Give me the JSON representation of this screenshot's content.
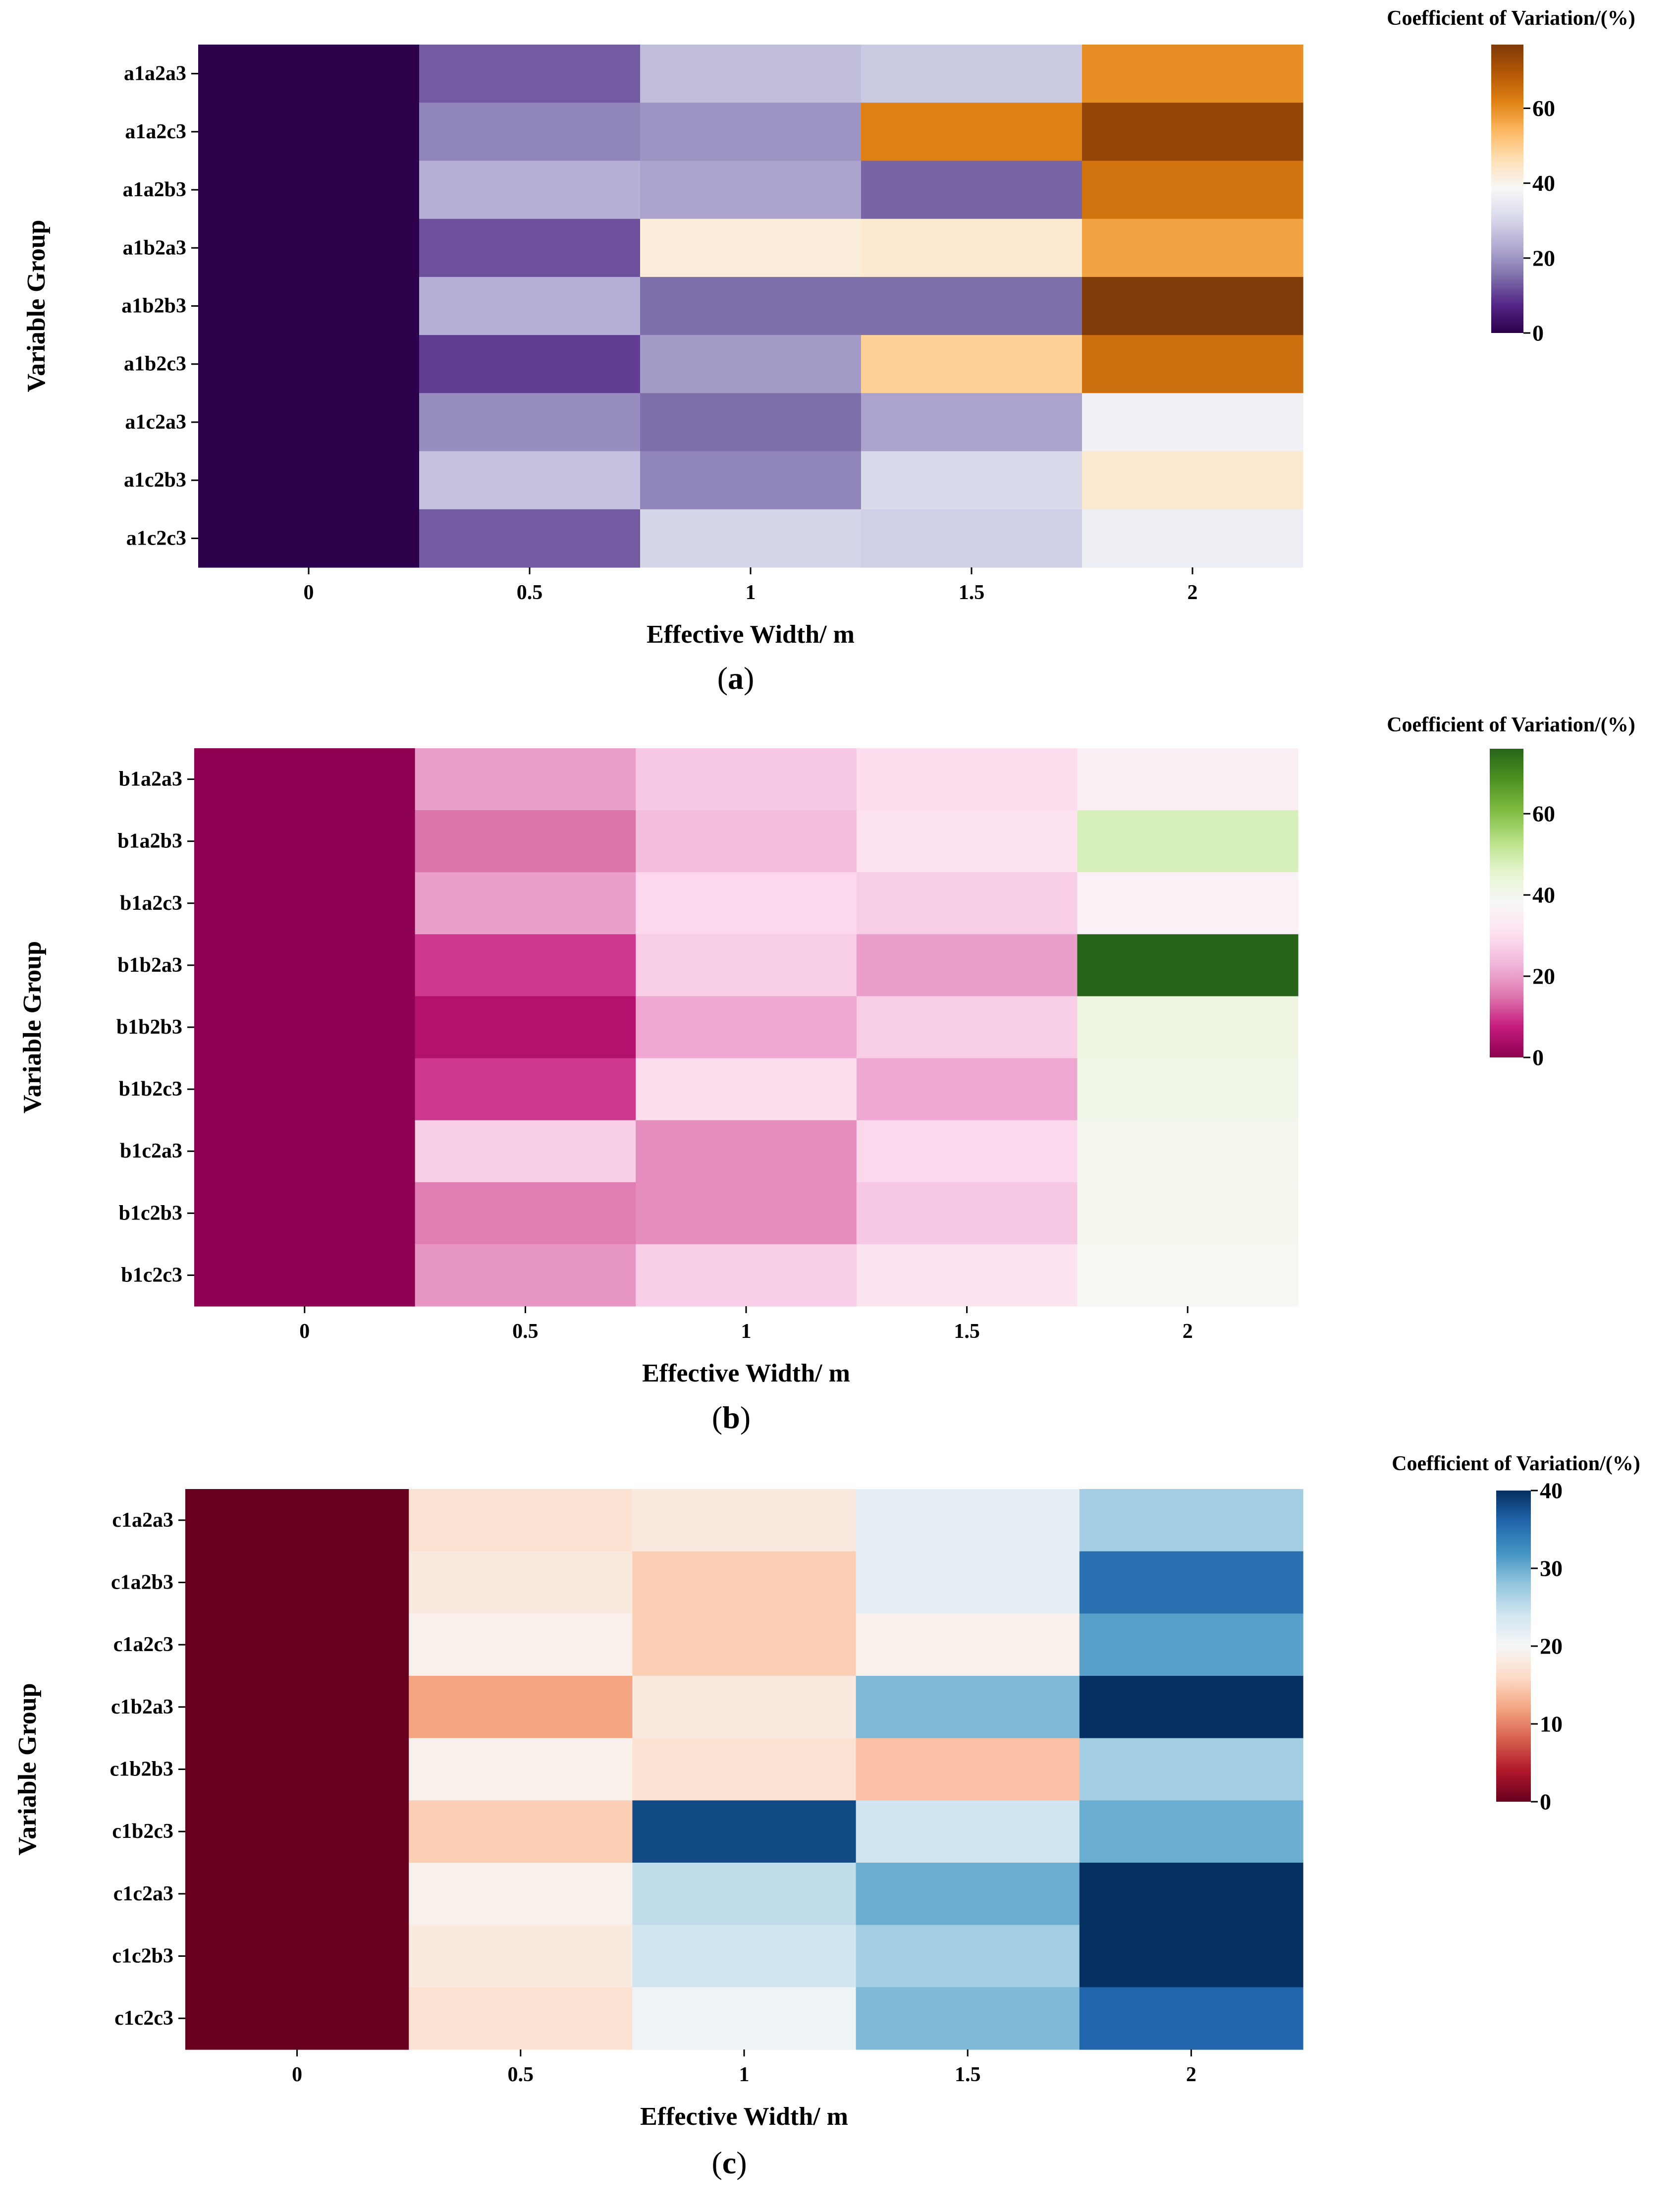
{
  "chart_data": [
    {
      "type": "heatmap",
      "panel": "a",
      "caption": {
        "open": "(",
        "letter": "a",
        "close": ")"
      },
      "xlabel": "Effective Width/ m",
      "ylabel": "Variable Group",
      "colorbar_label": "Coefficient of Variation/(%)",
      "colormap": "PuOr_r",
      "vmin": 0,
      "vmax": 77,
      "colorbar_ticks": [
        0,
        20,
        40,
        60
      ],
      "x": [
        "0",
        "0.5",
        "1",
        "1.5",
        "2"
      ],
      "y": [
        "a1a2a3",
        "a1a2c3",
        "a1a2b3",
        "a1b2a3",
        "a1b2b3",
        "a1b2c3",
        "a1c2a3",
        "a1c2b3",
        "a1c2c3"
      ],
      "values": [
        [
          0,
          13,
          26,
          28,
          60
        ],
        [
          0,
          18,
          20,
          62,
          74
        ],
        [
          0,
          24,
          22,
          14,
          64
        ],
        [
          0,
          12,
          42,
          43,
          57
        ],
        [
          0,
          24,
          15,
          15,
          78
        ],
        [
          0,
          10,
          21,
          49,
          65
        ],
        [
          0,
          19,
          15,
          22,
          37
        ],
        [
          0,
          27,
          18,
          31,
          43
        ],
        [
          0,
          13,
          30,
          29,
          36
        ]
      ]
    },
    {
      "type": "heatmap",
      "panel": "b",
      "caption": {
        "open": "(",
        "letter": "b",
        "close": ")"
      },
      "xlabel": "Effective Width/ m",
      "ylabel": "Variable Group",
      "colorbar_label": "Coefficient of Variation/(%)",
      "colormap": "PiYG",
      "vmin": 0,
      "vmax": 76,
      "colorbar_ticks": [
        0,
        20,
        40,
        60
      ],
      "x": [
        "0",
        "0.5",
        "1",
        "1.5",
        "2"
      ],
      "y": [
        "b1a2a3",
        "b1a2b3",
        "b1a2c3",
        "b1b2a3",
        "b1b2b3",
        "b1b2c3",
        "b1c2a3",
        "b1c2b3",
        "b1c2c3"
      ],
      "values": [
        [
          0,
          20,
          26,
          30,
          35
        ],
        [
          0,
          15,
          24,
          31,
          48
        ],
        [
          0,
          20,
          29,
          27,
          36
        ],
        [
          0,
          10,
          27,
          20,
          76
        ],
        [
          0,
          5,
          21,
          27,
          42
        ],
        [
          0,
          10,
          30,
          21,
          41
        ],
        [
          0,
          27,
          18,
          29,
          40
        ],
        [
          0,
          16,
          18,
          26,
          40
        ],
        [
          0,
          19,
          27,
          32,
          39
        ]
      ]
    },
    {
      "type": "heatmap",
      "panel": "c",
      "caption": {
        "open": "(",
        "letter": "c",
        "close": ")"
      },
      "xlabel": "Effective Width/ m",
      "ylabel": "Variable Group",
      "colorbar_label": "Coefficient of Variation/(%)",
      "colormap": "RdBu",
      "vmin": 0,
      "vmax": 40,
      "colorbar_ticks": [
        0,
        10,
        20,
        30,
        40
      ],
      "x": [
        "0",
        "0.5",
        "1",
        "1.5",
        "2"
      ],
      "y": [
        "c1a2a3",
        "c1a2b3",
        "c1a2c3",
        "c1b2a3",
        "c1b2b3",
        "c1b2c3",
        "c1c2a3",
        "c1c2b3",
        "c1c2c3"
      ],
      "values": [
        [
          0,
          17,
          18,
          22,
          27
        ],
        [
          0,
          18,
          15,
          22,
          35
        ],
        [
          0,
          19,
          15,
          19,
          31
        ],
        [
          0,
          12,
          18,
          29,
          40
        ],
        [
          0,
          19,
          17,
          14,
          27
        ],
        [
          0,
          15,
          38,
          24,
          30
        ],
        [
          0,
          19,
          25,
          30,
          40
        ],
        [
          0,
          18,
          24,
          27,
          40
        ],
        [
          0,
          17,
          21,
          29,
          36
        ]
      ]
    }
  ]
}
